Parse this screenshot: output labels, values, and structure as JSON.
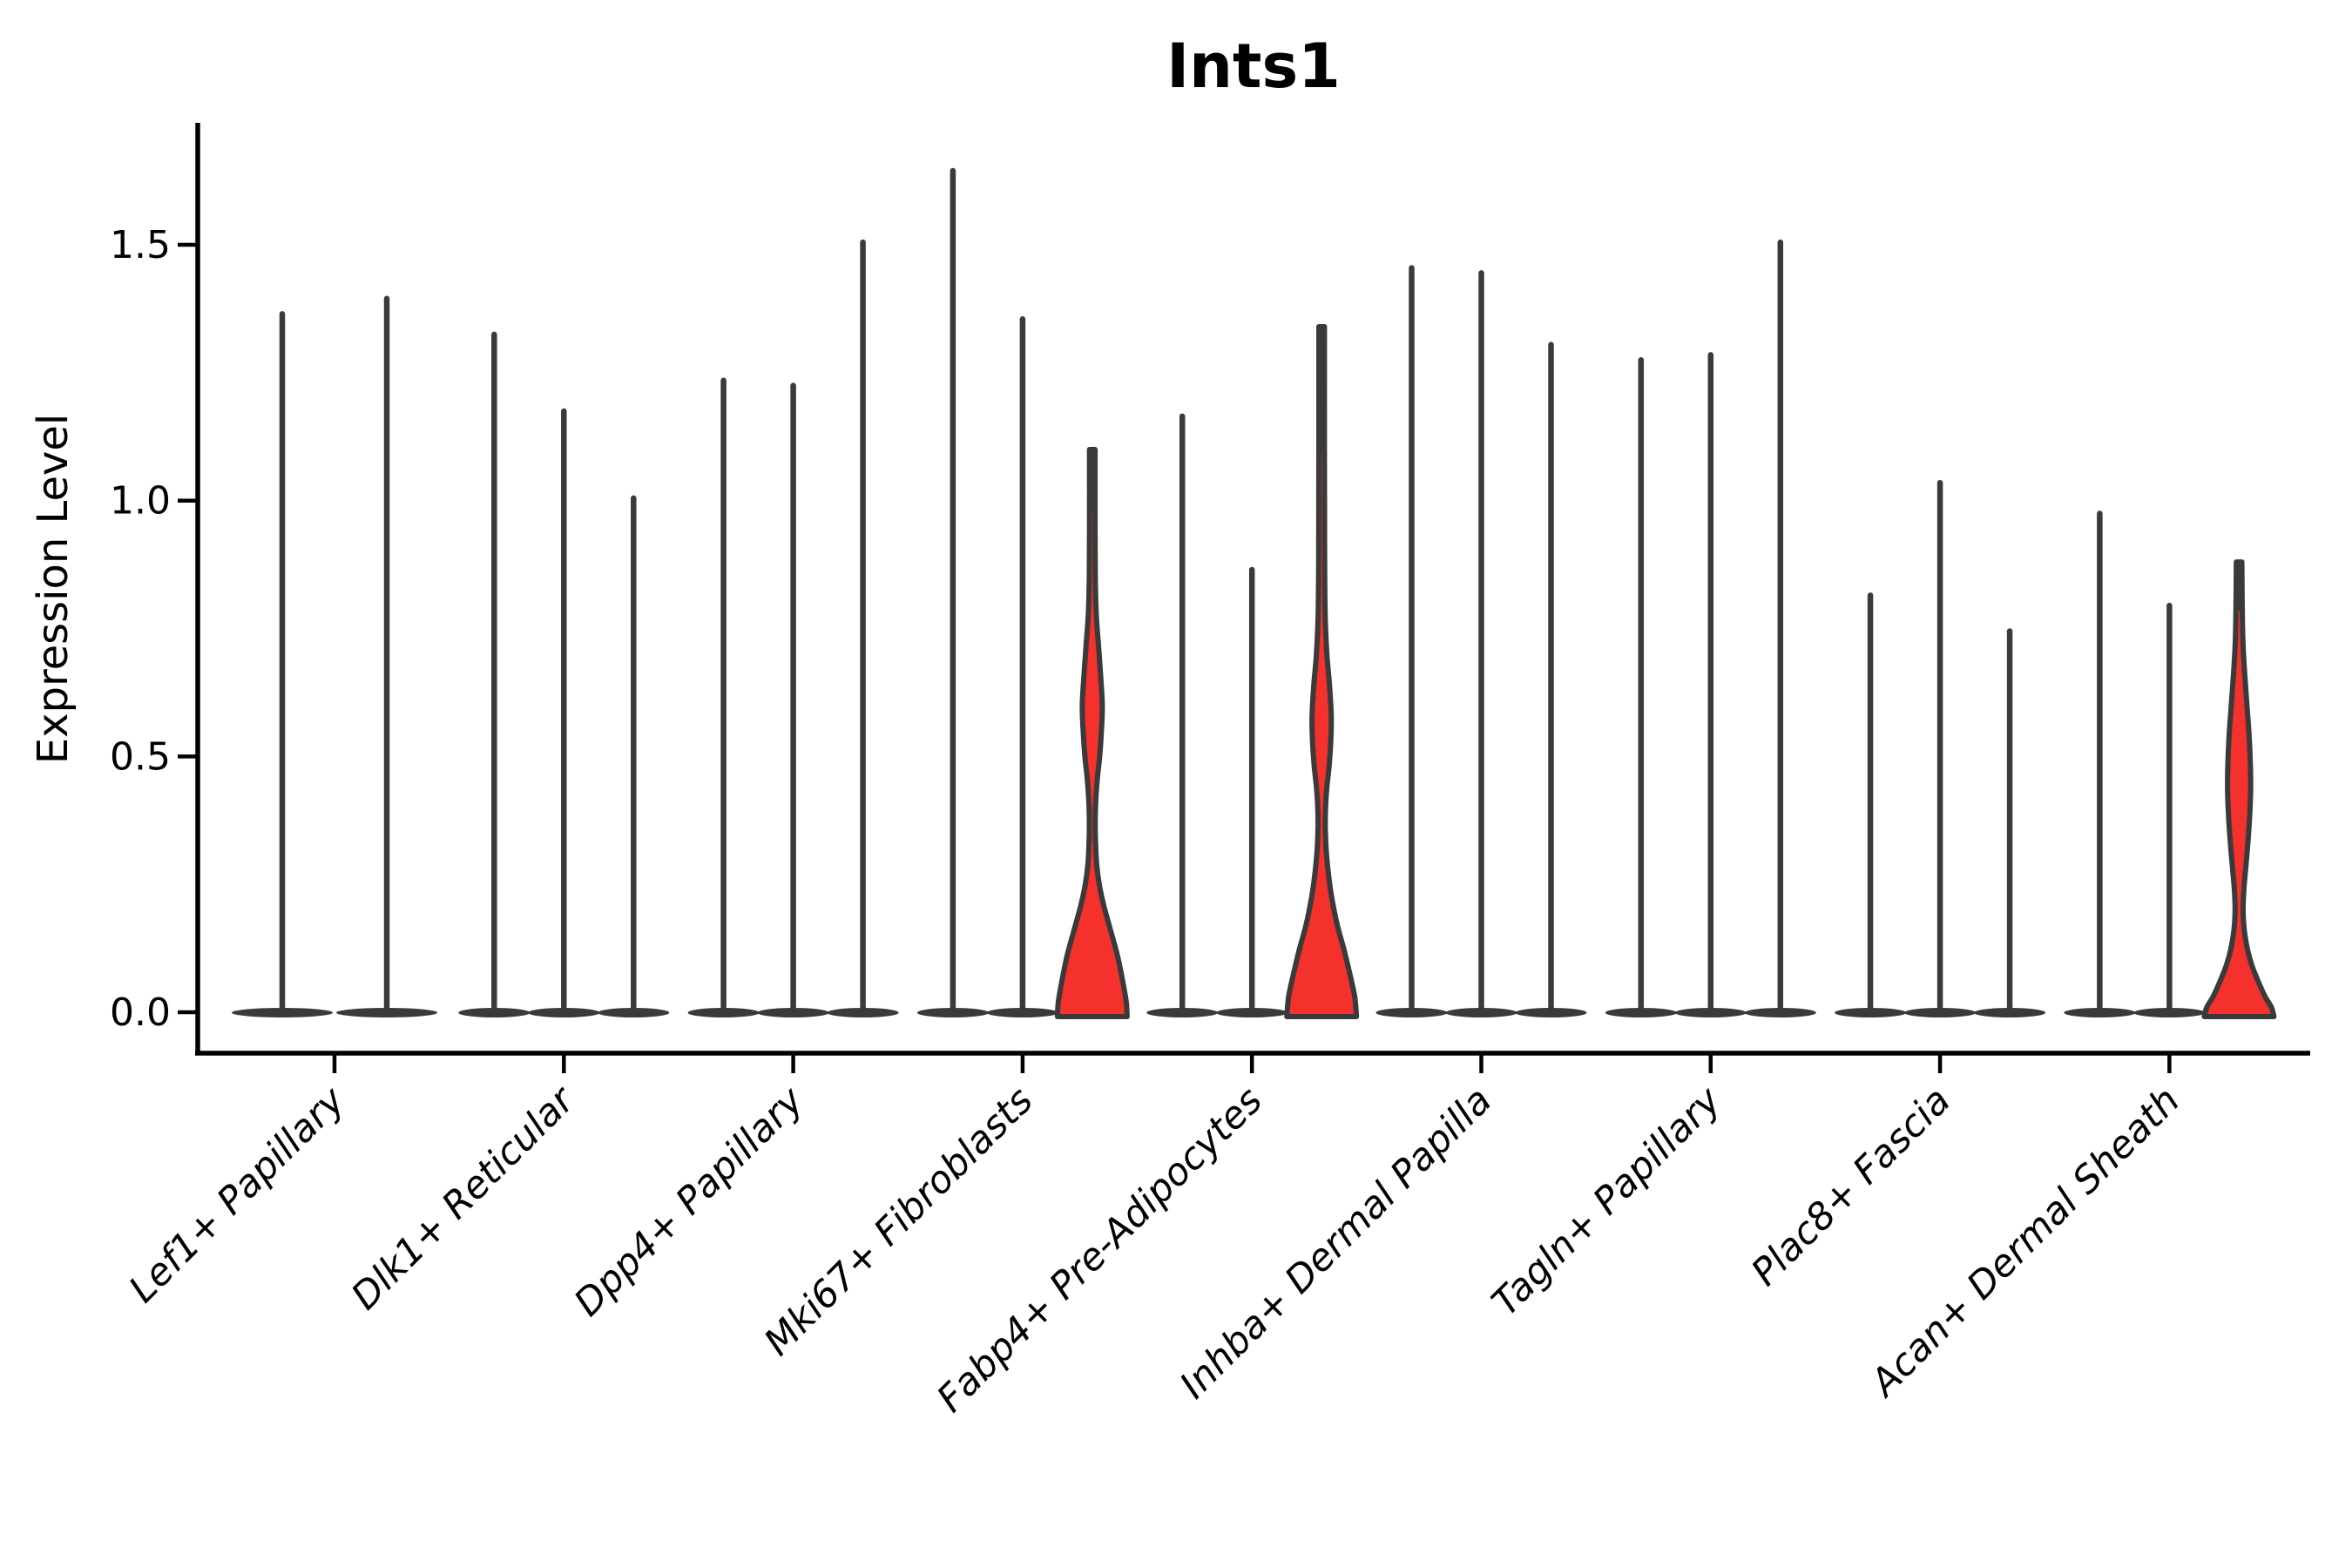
{
  "colors": {
    "background": "#ffffff",
    "violin_red_fill": "#f4312d",
    "violin_edge": "#3a3a3a",
    "axis": "#000000",
    "text": "#000000"
  },
  "chart_data": {
    "type": "violin",
    "title": "Ints1",
    "ylabel": "Expression Level",
    "xlabel": "",
    "grid": false,
    "legend_position": "none",
    "ylim": [
      -0.08,
      1.74
    ],
    "yticks": [
      {
        "label": "0.0",
        "value": 0.0
      },
      {
        "label": "0.5",
        "value": 0.5
      },
      {
        "label": "1.0",
        "value": 1.0
      },
      {
        "label": "1.5",
        "value": 1.5
      }
    ],
    "groups": [
      {
        "label": "Lef1+ Papillary",
        "violins": [
          {
            "max": 1.37,
            "filled": false
          },
          {
            "max": 1.4,
            "filled": false
          }
        ]
      },
      {
        "label": "Dlk1+ Reticular",
        "violins": [
          {
            "max": 1.33,
            "filled": false
          },
          {
            "max": 1.18,
            "filled": false
          },
          {
            "max": 1.01,
            "filled": false
          }
        ]
      },
      {
        "label": "Dpp4+ Papillary",
        "violins": [
          {
            "max": 1.24,
            "filled": false
          },
          {
            "max": 1.23,
            "filled": false
          },
          {
            "max": 1.51,
            "filled": false
          }
        ]
      },
      {
        "label": "Mki67+ Fibroblasts",
        "violins": [
          {
            "max": 1.65,
            "filled": false
          },
          {
            "max": 1.36,
            "filled": false
          },
          {
            "max": 1.1,
            "filled": true,
            "profile": [
              [
                1.1,
                3.2
              ],
              [
                0.98,
                3.2
              ],
              [
                0.86,
                3.4
              ],
              [
                0.78,
                4.5
              ],
              [
                0.72,
                7
              ],
              [
                0.66,
                9.5
              ],
              [
                0.6,
                11.5
              ],
              [
                0.55,
                10.5
              ],
              [
                0.5,
                8.5
              ],
              [
                0.46,
                6
              ],
              [
                0.42,
                4.2
              ],
              [
                0.38,
                3.4
              ],
              [
                0.34,
                3.6
              ],
              [
                0.29,
                5
              ],
              [
                0.25,
                8
              ],
              [
                0.21,
                13
              ],
              [
                0.16,
                21
              ],
              [
                0.11,
                29
              ],
              [
                0.06,
                35
              ],
              [
                0.02,
                39
              ],
              [
                0.0,
                40
              ]
            ]
          }
        ]
      },
      {
        "label": "Fabp4+ Pre-Adipocytes",
        "violins": [
          {
            "max": 1.17,
            "filled": false
          },
          {
            "max": 0.87,
            "filled": false
          },
          {
            "max": 1.34,
            "filled": true,
            "profile": [
              [
                1.34,
                3.2
              ],
              [
                1.1,
                3.2
              ],
              [
                0.9,
                3.4
              ],
              [
                0.78,
                4
              ],
              [
                0.7,
                6
              ],
              [
                0.64,
                9
              ],
              [
                0.58,
                11
              ],
              [
                0.53,
                10.5
              ],
              [
                0.48,
                8.5
              ],
              [
                0.44,
                6
              ],
              [
                0.4,
                4.5
              ],
              [
                0.36,
                4.2
              ],
              [
                0.31,
                5.5
              ],
              [
                0.26,
                8.5
              ],
              [
                0.22,
                12
              ],
              [
                0.17,
                18
              ],
              [
                0.12,
                26
              ],
              [
                0.07,
                33
              ],
              [
                0.03,
                38
              ],
              [
                0.0,
                40
              ]
            ]
          }
        ]
      },
      {
        "label": "Inhba+ Dermal Papilla",
        "violins": [
          {
            "max": 1.46,
            "filled": false
          },
          {
            "max": 1.45,
            "filled": false
          },
          {
            "max": 1.31,
            "filled": false
          }
        ]
      },
      {
        "label": "Tagln+ Papillary",
        "violins": [
          {
            "max": 1.28,
            "filled": false
          },
          {
            "max": 1.29,
            "filled": false
          },
          {
            "max": 1.51,
            "filled": false
          }
        ]
      },
      {
        "label": "Plac8+ Fascia",
        "violins": [
          {
            "max": 0.82,
            "filled": false
          },
          {
            "max": 1.04,
            "filled": false
          },
          {
            "max": 0.75,
            "filled": false
          }
        ]
      },
      {
        "label": "Acan+ Dermal Sheath",
        "violins": [
          {
            "max": 0.98,
            "filled": false
          },
          {
            "max": 0.8,
            "filled": false
          },
          {
            "max": 0.88,
            "filled": true,
            "profile": [
              [
                0.88,
                3.2
              ],
              [
                0.79,
                3.6
              ],
              [
                0.72,
                4.5
              ],
              [
                0.66,
                6.5
              ],
              [
                0.6,
                9
              ],
              [
                0.54,
                11.5
              ],
              [
                0.48,
                13
              ],
              [
                0.43,
                13.2
              ],
              [
                0.38,
                12
              ],
              [
                0.33,
                10
              ],
              [
                0.28,
                7.5
              ],
              [
                0.24,
                5.5
              ],
              [
                0.2,
                4.6
              ],
              [
                0.16,
                6
              ],
              [
                0.12,
                10
              ],
              [
                0.09,
                15
              ],
              [
                0.06,
                22
              ],
              [
                0.03,
                30
              ],
              [
                0.01,
                37
              ],
              [
                0.0,
                40
              ]
            ]
          }
        ]
      }
    ]
  }
}
